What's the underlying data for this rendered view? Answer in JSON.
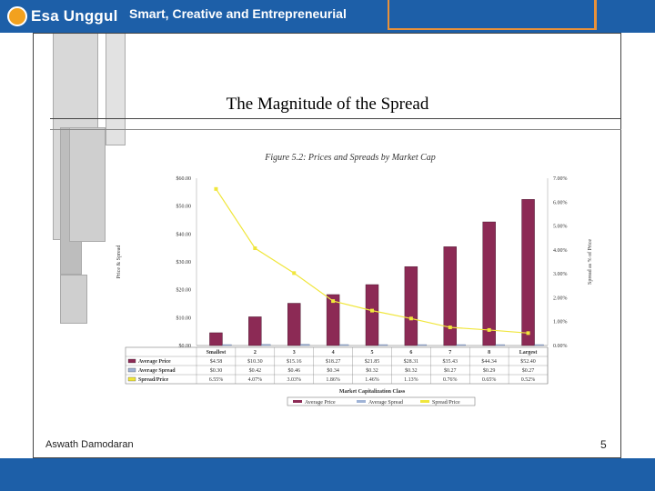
{
  "header": {
    "brand": "Esa Unggul",
    "tagline": "Smart, Creative and Entrepreneurial"
  },
  "slide": {
    "title": "The Magnitude of the Spread",
    "author": "Aswath Damodaran",
    "page_number": "5"
  },
  "colors": {
    "header_bar": "#1d5fa8",
    "accent": "#e8913a",
    "bar": "#8c2a55",
    "line": "#f0e63c"
  },
  "chart_data": {
    "type": "bar",
    "title": "Figure 5.2: Prices and Spreads by Market Cap",
    "xlabel": "Market Capitalization Class",
    "ylabel": "Price & Spread",
    "y2label": "Spread as % of Price",
    "ylim": [
      0,
      60
    ],
    "y2lim": [
      0,
      7
    ],
    "yticks": [
      "$0.00",
      "$10.00",
      "$20.00",
      "$30.00",
      "$40.00",
      "$50.00",
      "$60.00"
    ],
    "y2ticks": [
      "0.00%",
      "1.00%",
      "2.00%",
      "3.00%",
      "4.00%",
      "5.00%",
      "6.00%",
      "7.00%"
    ],
    "categories": [
      "Smallest",
      "2",
      "3",
      "4",
      "5",
      "6",
      "7",
      "8",
      "Largest"
    ],
    "series": [
      {
        "name": "Average Price",
        "values": [
          4.58,
          10.3,
          15.16,
          18.27,
          21.85,
          28.31,
          35.43,
          44.34,
          52.4
        ],
        "labels": [
          "$4.58",
          "$10.30",
          "$15.16",
          "$18.27",
          "$21.85",
          "$28.31",
          "$35.43",
          "$44.34",
          "$52.40"
        ]
      },
      {
        "name": "Average Spread",
        "values": [
          0.3,
          0.42,
          0.46,
          0.34,
          0.32,
          0.32,
          0.27,
          0.29,
          0.27
        ],
        "labels": [
          "$0.30",
          "$0.42",
          "$0.46",
          "$0.34",
          "$0.32",
          "$0.32",
          "$0.27",
          "$0.29",
          "$0.27"
        ]
      },
      {
        "name": "Spread/Price",
        "values": [
          6.55,
          4.07,
          3.03,
          1.86,
          1.46,
          1.13,
          0.76,
          0.65,
          0.52
        ],
        "labels": [
          "6.55%",
          "4.07%",
          "3.03%",
          "1.86%",
          "1.46%",
          "1.13%",
          "0.76%",
          "0.65%",
          "0.52%"
        ]
      }
    ],
    "legend": [
      "Average Price",
      "Average Spread",
      "Spread/Price"
    ]
  }
}
